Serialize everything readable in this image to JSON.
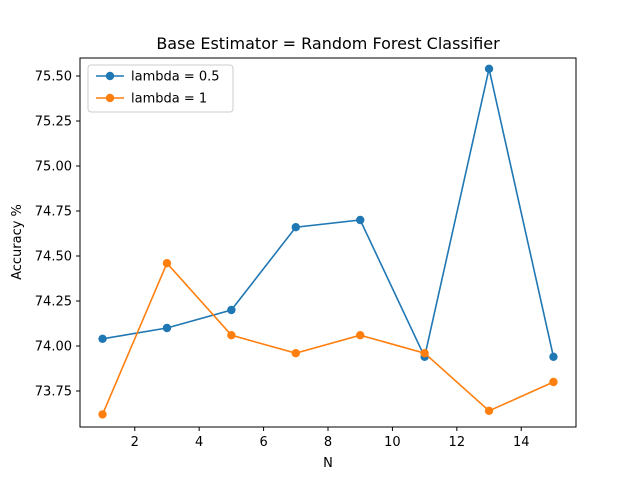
{
  "chart_data": {
    "type": "line",
    "title": "Base Estimator = Random Forest Classifier",
    "xlabel": "N",
    "ylabel": "Accuracy %",
    "xlim": [
      0.3,
      15.7
    ],
    "ylim": [
      73.55,
      75.6
    ],
    "xticks": [
      2,
      4,
      6,
      8,
      10,
      12,
      14
    ],
    "xtick_labels": [
      "2",
      "4",
      "6",
      "8",
      "10",
      "12",
      "14"
    ],
    "yticks": [
      73.75,
      74.0,
      74.25,
      74.5,
      74.75,
      75.0,
      75.25,
      75.5
    ],
    "ytick_labels": [
      "73.75",
      "74.00",
      "74.25",
      "74.50",
      "74.75",
      "75.00",
      "75.25",
      "75.50"
    ],
    "x": [
      1,
      3,
      5,
      7,
      9,
      11,
      13,
      15
    ],
    "series": [
      {
        "name": "lambda = 0.5",
        "color": "#1f77b4",
        "values": [
          74.04,
          74.1,
          74.2,
          74.66,
          74.7,
          73.94,
          75.54,
          73.94
        ]
      },
      {
        "name": "lambda = 1",
        "color": "#ff7f0e",
        "values": [
          73.62,
          74.46,
          74.06,
          73.96,
          74.06,
          73.96,
          73.64,
          73.8
        ]
      }
    ],
    "grid": false,
    "legend_position": "top-left"
  }
}
